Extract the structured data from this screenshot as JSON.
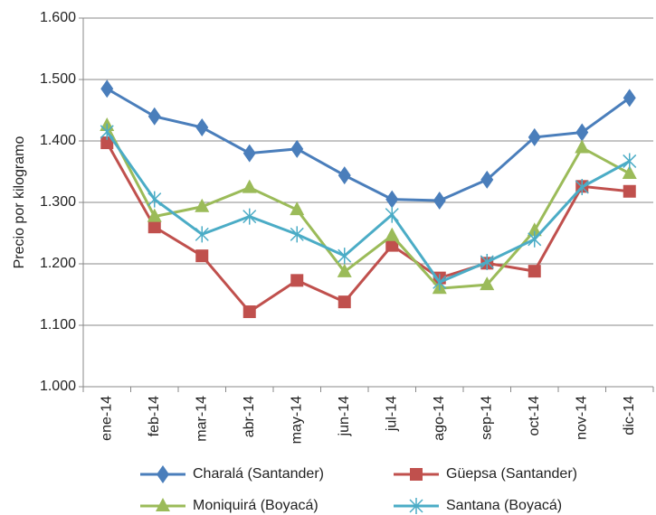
{
  "chart_data": {
    "type": "line",
    "y_label": "Precio por kilogramo",
    "categories": [
      "ene-14",
      "feb-14",
      "mar-14",
      "abr-14",
      "may-14",
      "jun-14",
      "jul-14",
      "ago-14",
      "sep-14",
      "oct-14",
      "nov-14",
      "dic-14"
    ],
    "series": [
      {
        "name": "Charalá (Santander)",
        "color": "#4a7ebb",
        "marker": "diamond",
        "values": [
          1485,
          1440,
          1422,
          1380,
          1387,
          1344,
          1305,
          1303,
          1337,
          1406,
          1414,
          1470
        ]
      },
      {
        "name": "Güepsa (Santander)",
        "color": "#c0504d",
        "marker": "square",
        "values": [
          1397,
          1260,
          1213,
          1122,
          1173,
          1138,
          1230,
          1177,
          1201,
          1188,
          1326,
          1318
        ]
      },
      {
        "name": "Moniquirá (Boyacá)",
        "color": "#9bbb59",
        "marker": "triangle",
        "values": [
          1425,
          1277,
          1293,
          1324,
          1288,
          1187,
          1246,
          1160,
          1166,
          1254,
          1389,
          1347
        ]
      },
      {
        "name": "Santana (Boyacá)",
        "color": "#4bacc6",
        "marker": "star",
        "values": [
          1415,
          1305,
          1248,
          1277,
          1248,
          1213,
          1280,
          1170,
          1203,
          1240,
          1325,
          1367
        ]
      }
    ],
    "ylim": [
      1000,
      1600
    ],
    "yticks": [
      {
        "value": 1000,
        "label": "1.000"
      },
      {
        "value": 1100,
        "label": "1.100"
      },
      {
        "value": 1200,
        "label": "1.200"
      },
      {
        "value": 1300,
        "label": "1.300"
      },
      {
        "value": 1400,
        "label": "1.400"
      },
      {
        "value": 1500,
        "label": "1.500"
      },
      {
        "value": 1600,
        "label": "1.600"
      }
    ],
    "grid": true
  }
}
